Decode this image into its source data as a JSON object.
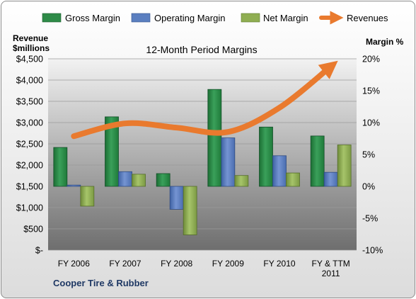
{
  "chart_data": {
    "type": "bar",
    "title": "12-Month Period Margins",
    "company": "Cooper Tire & Rubber",
    "y_left_label": [
      "Revenue",
      "$millions"
    ],
    "y_right_label": "Margin %",
    "y_left_ticks": [
      "$4,500",
      "$4,000",
      "$3,500",
      "$3,000",
      "$2,500",
      "$2,000",
      "$1,500",
      "$1,000",
      "$500",
      "$-"
    ],
    "y_right_ticks": [
      "20%",
      "15%",
      "10%",
      "5%",
      "0%",
      "-5%",
      "-10%"
    ],
    "ylim_left": [
      0,
      4500
    ],
    "ylim_right": [
      -10,
      20
    ],
    "categories": [
      "FY 2006",
      "FY 2007",
      "FY 2008",
      "FY 2009",
      "FY 2010",
      "FY & TTM 2011"
    ],
    "legend_position": "top",
    "series": [
      {
        "name": "Gross Margin",
        "kind": "bar",
        "axis": "right",
        "color": "#2e8b48",
        "values": [
          6.1,
          10.9,
          2.0,
          15.2,
          9.3,
          7.9
        ]
      },
      {
        "name": "Operating Margin",
        "kind": "bar",
        "axis": "right",
        "color": "#5b7fc0",
        "values": [
          0.2,
          2.3,
          -3.6,
          7.6,
          4.8,
          2.2
        ]
      },
      {
        "name": "Net Margin",
        "kind": "bar",
        "axis": "right",
        "color": "#8fae52",
        "values": [
          -3.1,
          1.9,
          -7.6,
          1.7,
          2.1,
          6.5
        ]
      },
      {
        "name": "Revenues",
        "kind": "line",
        "axis": "left",
        "color": "#e97a2e",
        "values": [
          2680,
          2980,
          2880,
          2780,
          3350,
          4320
        ]
      }
    ]
  }
}
